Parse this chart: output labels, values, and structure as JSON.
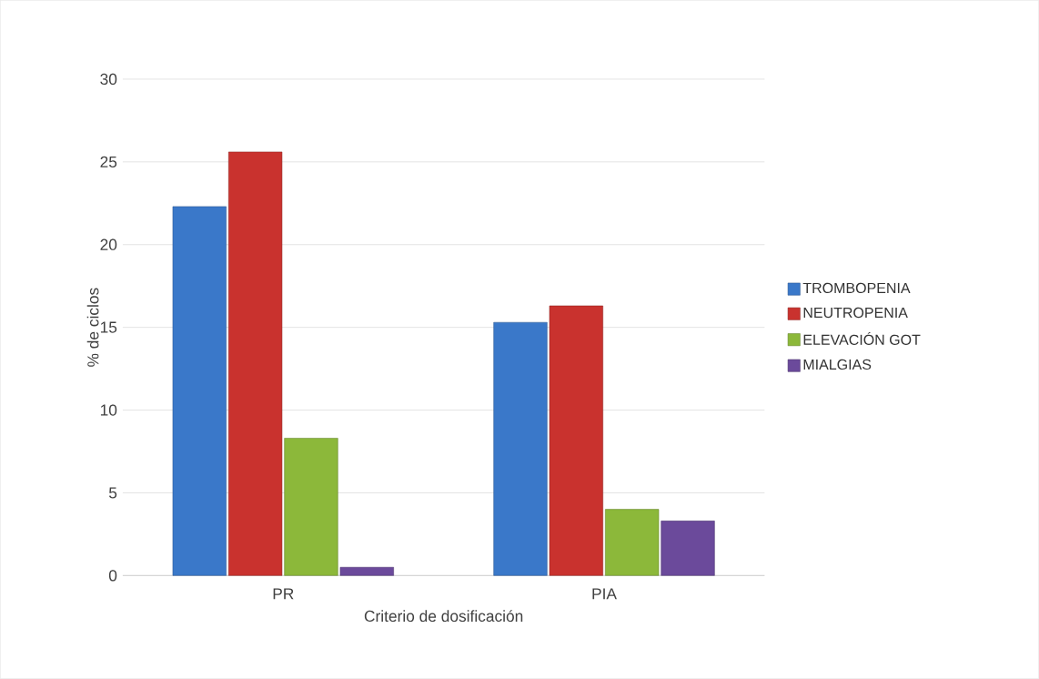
{
  "chart_data": {
    "type": "bar",
    "xlabel": "Criterio de dosificación",
    "ylabel": "% de ciclos",
    "categories": [
      "PR",
      "PIA"
    ],
    "series": [
      {
        "name": "TROMBOPENIA",
        "color": "#3a78c9",
        "values": [
          22.3,
          15.3
        ]
      },
      {
        "name": "NEUTROPENIA",
        "color": "#c9322e",
        "values": [
          25.6,
          16.3
        ]
      },
      {
        "name": "ELEVACIÓN GOT",
        "color": "#8cb83a",
        "values": [
          8.3,
          4.0
        ]
      },
      {
        "name": "MIALGIAS",
        "color": "#6b4a9b",
        "values": [
          0.5,
          3.3
        ]
      }
    ],
    "ylim": [
      0,
      30
    ],
    "yticks": [
      0,
      5,
      10,
      15,
      20,
      25,
      30
    ],
    "grid": "y",
    "legend": "right"
  }
}
